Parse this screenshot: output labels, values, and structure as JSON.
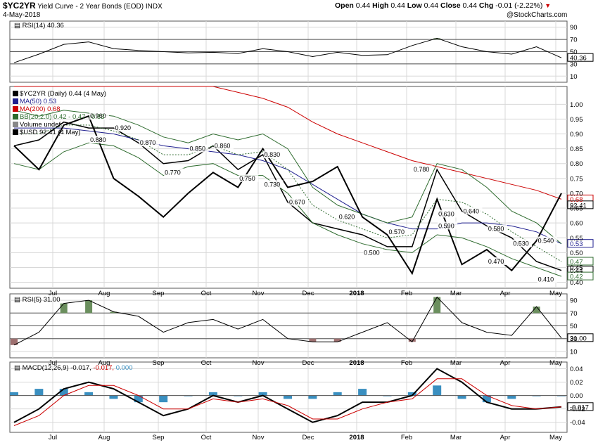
{
  "header": {
    "symbol": "$YC2YR",
    "name": "Yield Curve - 2 Year Bonds (EOD)",
    "exchange": "INDX",
    "date": "4-May-2018",
    "watermark": "@StockCharts.com",
    "open_label": "Open",
    "open_value": "0.44",
    "high_label": "High",
    "high_value": "0.44",
    "low_label": "Low",
    "low_value": "0.44",
    "close_label": "Close",
    "close_value": "0.44",
    "chg_label": "Chg",
    "chg_value": "-0.01 (-2.22%)",
    "down_color": "#cc0000"
  },
  "legends": {
    "rsi14": "RSI(14) 40.36",
    "main": [
      {
        "text": "$YC2YR (Daily) 0.44 (4 May)",
        "color": "#000000"
      },
      {
        "text": "MA(50) 0.53",
        "color": "#1f1f8f"
      },
      {
        "text": "MA(200) 0.68",
        "color": "#cc0000"
      },
      {
        "text": "BB(20,2.0) 0.42 - 0.47 - 0.53",
        "color": "#2e6b2e"
      },
      {
        "text": "Volume undef",
        "color": "#000000"
      },
      {
        "text": "$USD 92.41 (4 May)",
        "color": "#000000"
      }
    ],
    "rsi5": "RSI(5) 31.00",
    "macd_label": "MACD(12,26,9)",
    "macd_v1": "-0.017,",
    "macd_v2": "-0.017,",
    "macd_v3": "0.000"
  },
  "colors": {
    "price": "#000000",
    "ma50": "#1f1f8f",
    "ma200": "#cc0000",
    "bb": "#2e6b2e",
    "usd": "#000000",
    "rsi_over": "#6b8f5e",
    "rsi_under": "#9e7070",
    "macd": "#000000",
    "signal": "#cc0000",
    "hist": "#3a8fc0",
    "grid": "#d8d8d8"
  },
  "chart_data": {
    "type": "line",
    "x": [
      "2018-06-01",
      "2018-06-15",
      "2018-07-01",
      "2018-07-15",
      "2018-08-01",
      "2018-08-15",
      "2018-09-01",
      "2018-09-15",
      "2018-10-01",
      "2018-10-15",
      "2018-11-01",
      "2018-11-15",
      "2018-12-01",
      "2018-12-15",
      "2018-01-02",
      "2018-01-15",
      "2018-02-01",
      "2018-02-15",
      "2018-03-01",
      "2018-03-15",
      "2018-04-01",
      "2018-04-15",
      "2018-05-04"
    ],
    "x_ticks": [
      "Jul",
      "Aug",
      "Sep",
      "Oct",
      "Nov",
      "Dec",
      "2018",
      "Feb",
      "Mar",
      "Apr",
      "May"
    ],
    "panels": [
      {
        "name": "rsi14",
        "ylim": [
          0,
          100
        ],
        "y_ticks": [
          "90",
          "70",
          "50",
          "30",
          "10"
        ],
        "levels": [
          70,
          50,
          30
        ],
        "series": [
          {
            "name": "RSI(14)",
            "values": [
              32,
              46,
              62,
              66,
              55,
              52,
              50,
              48,
              49,
              47,
              55,
              50,
              42,
              49,
              44,
              45,
              60,
              72,
              58,
              50,
              46,
              58,
              40
            ]
          }
        ],
        "last_label": "40.36"
      },
      {
        "name": "price",
        "ylim": [
          0.38,
          1.06
        ],
        "y_ticks": [
          "1.00",
          "0.95",
          "0.90",
          "0.85",
          "0.80",
          "0.75",
          "0.70",
          "0.65",
          "0.60",
          "0.55",
          "0.50",
          "0.45",
          "0.40"
        ],
        "series": [
          {
            "name": "$YC2YR",
            "values": [
              0.86,
              0.88,
              0.94,
              0.92,
              0.92,
              0.87,
              0.8,
              0.81,
              0.86,
              0.78,
              0.83,
              0.67,
              0.6,
              0.58,
              0.56,
              0.52,
              0.52,
              0.78,
              0.64,
              0.59,
              0.55,
              0.47,
              0.44
            ]
          },
          {
            "name": "MA(50)",
            "values": [
              0.92,
              0.92,
              0.92,
              0.91,
              0.9,
              0.88,
              0.86,
              0.85,
              0.84,
              0.83,
              0.81,
              0.78,
              0.73,
              0.68,
              0.63,
              0.6,
              0.58,
              0.58,
              0.6,
              0.6,
              0.59,
              0.57,
              0.53
            ]
          },
          {
            "name": "MA(200)",
            "values": [
              1.08,
              1.08,
              1.08,
              1.08,
              1.08,
              1.08,
              1.08,
              1.08,
              1.06,
              1.04,
              1.02,
              0.99,
              0.94,
              0.9,
              0.87,
              0.84,
              0.81,
              0.79,
              0.77,
              0.75,
              0.73,
              0.71,
              0.68
            ]
          },
          {
            "name": "BB upper",
            "values": [
              0.98,
              0.96,
              0.98,
              0.97,
              0.96,
              0.93,
              0.89,
              0.87,
              0.9,
              0.88,
              0.9,
              0.85,
              0.72,
              0.66,
              0.63,
              0.6,
              0.62,
              0.8,
              0.78,
              0.72,
              0.64,
              0.6,
              0.53
            ]
          },
          {
            "name": "BB mid",
            "values": [
              0.9,
              0.9,
              0.93,
              0.93,
              0.91,
              0.88,
              0.83,
              0.83,
              0.86,
              0.83,
              0.84,
              0.78,
              0.66,
              0.61,
              0.58,
              0.55,
              0.56,
              0.68,
              0.67,
              0.63,
              0.57,
              0.52,
              0.47
            ]
          },
          {
            "name": "BB lower",
            "values": [
              0.8,
              0.78,
              0.84,
              0.87,
              0.86,
              0.82,
              0.76,
              0.79,
              0.8,
              0.76,
              0.76,
              0.7,
              0.6,
              0.56,
              0.53,
              0.51,
              0.5,
              0.56,
              0.55,
              0.52,
              0.48,
              0.45,
              0.42
            ]
          },
          {
            "name": "$USD",
            "values": [
              0.86,
              0.78,
              0.93,
              0.96,
              0.75,
              0.69,
              0.62,
              0.7,
              0.77,
              0.72,
              0.85,
              0.72,
              0.74,
              0.79,
              0.62,
              0.56,
              0.43,
              0.68,
              0.46,
              0.51,
              0.44,
              0.54,
              0.7
            ]
          }
        ],
        "annotations": [
          {
            "x": "2018-07-15",
            "y": 0.96,
            "text": "0.960"
          },
          {
            "x": "2018-07-15",
            "y": 0.88,
            "text": "0.880"
          },
          {
            "x": "2018-08-01",
            "y": 0.92,
            "text": "0.920"
          },
          {
            "x": "2018-08-15",
            "y": 0.87,
            "text": "0.870"
          },
          {
            "x": "2018-09-01",
            "y": 0.77,
            "text": "0.770"
          },
          {
            "x": "2018-09-15",
            "y": 0.85,
            "text": "0.850"
          },
          {
            "x": "2018-10-01",
            "y": 0.86,
            "text": "0.860"
          },
          {
            "x": "2018-10-15",
            "y": 0.75,
            "text": "0.750"
          },
          {
            "x": "2018-11-01",
            "y": 0.83,
            "text": "0.830"
          },
          {
            "x": "2018-11-01",
            "y": 0.73,
            "text": "0.730"
          },
          {
            "x": "2018-11-15",
            "y": 0.67,
            "text": "0.670"
          },
          {
            "x": "2018-12-15",
            "y": 0.62,
            "text": "0.620"
          },
          {
            "x": "2018-01-02",
            "y": 0.5,
            "text": "0.500"
          },
          {
            "x": "2018-01-15",
            "y": 0.57,
            "text": "0.570"
          },
          {
            "x": "2018-02-01",
            "y": 0.78,
            "text": "0.780"
          },
          {
            "x": "2018-02-15",
            "y": 0.63,
            "text": "0.630"
          },
          {
            "x": "2018-02-15",
            "y": 0.59,
            "text": "0.590"
          },
          {
            "x": "2018-03-01",
            "y": 0.64,
            "text": "0.640"
          },
          {
            "x": "2018-03-15",
            "y": 0.58,
            "text": "0.580"
          },
          {
            "x": "2018-03-15",
            "y": 0.47,
            "text": "0.470"
          },
          {
            "x": "2018-04-01",
            "y": 0.53,
            "text": "0.530"
          },
          {
            "x": "2018-04-15",
            "y": 0.41,
            "text": "0.410"
          },
          {
            "x": "2018-04-15",
            "y": 0.54,
            "text": "0.540"
          }
        ],
        "last_labels": [
          {
            "text": "0.68",
            "y": 0.68,
            "color": "#cc0000"
          },
          {
            "text": "92.41",
            "y": 0.66,
            "color": "#000000"
          },
          {
            "text": "0.53",
            "y": 0.53,
            "color": "#1f1f8f"
          },
          {
            "text": "0.47",
            "y": 0.47,
            "color": "#2e6b2e"
          },
          {
            "text": "0.44",
            "y": 0.44,
            "color": "#000000"
          },
          {
            "text": "0.42",
            "y": 0.42,
            "color": "#2e6b2e"
          }
        ]
      },
      {
        "name": "rsi5",
        "ylim": [
          0,
          100
        ],
        "y_ticks": [
          "90",
          "70",
          "50",
          "30",
          "10"
        ],
        "levels": [
          70,
          50,
          30
        ],
        "series": [
          {
            "name": "RSI(5)",
            "values": [
              20,
              40,
              85,
              90,
              72,
              65,
              40,
              55,
              60,
              45,
              60,
              30,
              25,
              25,
              40,
              55,
              25,
              95,
              55,
              40,
              35,
              80,
              31
            ]
          }
        ],
        "last_label": "31.00"
      },
      {
        "name": "macd",
        "ylim": [
          -0.055,
          0.05
        ],
        "y_ticks": [
          "0.04",
          "0.02",
          "0.00",
          "-0.02",
          "-0.04"
        ],
        "series": [
          {
            "name": "MACD",
            "values": [
              -0.04,
              -0.02,
              0.01,
              0.02,
              0.01,
              -0.01,
              -0.03,
              -0.02,
              0.0,
              -0.01,
              0.0,
              -0.02,
              -0.04,
              -0.03,
              -0.01,
              -0.01,
              0.0,
              0.04,
              0.02,
              -0.01,
              -0.02,
              -0.02,
              -0.017
            ]
          },
          {
            "name": "Signal",
            "values": [
              -0.045,
              -0.03,
              0.0,
              0.015,
              0.015,
              0.0,
              -0.02,
              -0.02,
              -0.005,
              -0.01,
              -0.005,
              -0.015,
              -0.035,
              -0.035,
              -0.02,
              -0.01,
              -0.005,
              0.025,
              0.025,
              0.0,
              -0.015,
              -0.02,
              -0.017
            ]
          }
        ],
        "last_label": "-0.017"
      }
    ]
  }
}
